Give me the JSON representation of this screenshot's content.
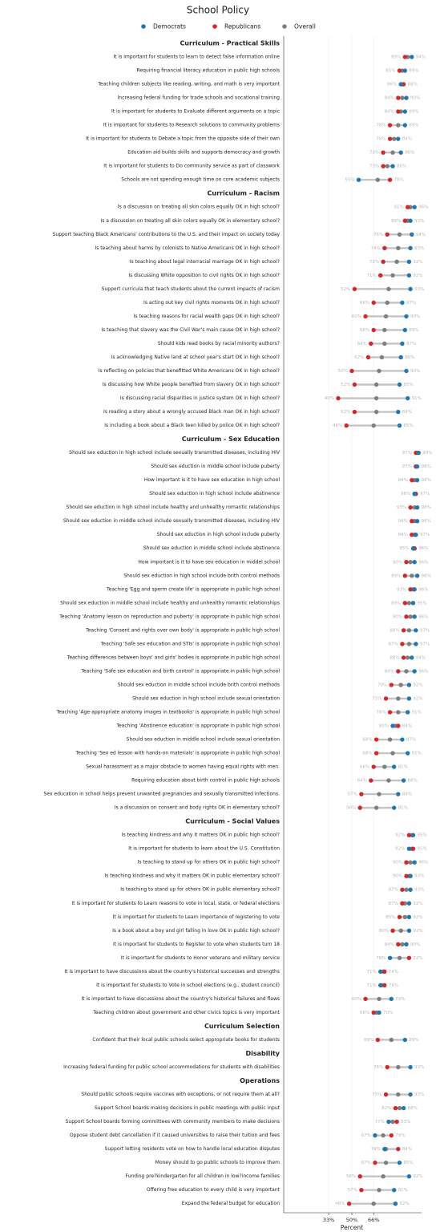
{
  "chart_data": {
    "type": "dot",
    "title": "School Policy",
    "xlabel": "Percent",
    "xlim": [
      0,
      100
    ],
    "xticks": [
      {
        "value": 33,
        "label": "33%"
      },
      {
        "value": 50,
        "label": "50%"
      },
      {
        "value": 66,
        "label": "66%"
      }
    ],
    "grid": true,
    "series": [
      {
        "name": "Democrats",
        "color": "#1f77b4"
      },
      {
        "name": "Republicans",
        "color": "#d62728"
      },
      {
        "name": "Overall",
        "color": "#7f7f7f"
      }
    ],
    "sections": [
      {
        "title": "Curriculum - Practical Skills",
        "categories": [
          "It is important for students to learn to detect false information online",
          "Requiring financial literacy education in public high schools",
          "Teaching children subjects like reading, writing, and math is very important",
          "Increasing federal funding for trade schools and vocational training",
          "It is important for students to Evaluate different arguments on a topic",
          "It is important for students to Research solutions to community problems",
          "It is important for students to Debate a topic from the opposite side of their own",
          "Education aid builds skills and supports democracy and growth",
          "It is important for students to Do community service as part of classwork",
          "Schools are not spending enough time on core academic subjects"
        ],
        "series": [
          {
            "values": [
              94,
              89,
              86,
              90,
              89,
              89,
              84,
              86,
              80,
              55
            ],
            "value_labels": [
              "94%",
              "89%",
              "86%",
              "90%",
              "89%",
              "89%",
              "84%",
              "86%",
              "80%",
              "55%"
            ]
          },
          {
            "values": [
              89,
              85,
              88,
              84,
              84,
              78,
              78,
              73,
              73,
              78
            ],
            "value_labels": [
              "89%",
              "85%",
              "88%",
              "84%",
              "84%",
              "78%",
              "78%",
              "73%",
              "73%",
              "78%"
            ]
          },
          {
            "values": [
              91,
              87,
              87,
              87,
              86,
              84,
              81,
              80,
              76,
              69
            ]
          }
        ]
      },
      {
        "title": "Curriculum - Racism",
        "categories": [
          "Is a discussion on treating all skin colors equally OK in high school?",
          "Is a discussion on treating all skin colors equally OK in elementary school?",
          "Support teaching Black Americans' contributions to the U.S. and their impact on society today",
          "Is teaching about harms by colonists to Native Americans OK in high school?",
          "Is teaching about legal interracial marriage OK in high school?",
          "Is discussing White opposition to civil rights OK in high school?",
          "Support curricula that teach students about the current impacts of racism",
          "Is acting out key civil rights moments OK in high school?",
          "Is teaching reasons for racial wealth gaps OK in high school?",
          "Is teaching that slavery was the Civil War's main cause OK in high school?",
          "Should kids read books by racial minority authors?",
          "Is acknowledging Native land at school year's start OK in high school?",
          "Is reflecting on policies that benefitted White Americans OK in high school?",
          "Is discussing how White people benefited from slavery OK in high school?",
          "Is discussing racial disparities in justice system OK in high school?",
          "Is reading a story about a wrongly accused Black man OK in high school?",
          "Is including a book about a Black teen killed by police OK in high school?"
        ],
        "series": [
          {
            "values": [
              96,
              93,
              94,
              93,
              92,
              92,
              93,
              87,
              90,
              89,
              87,
              86,
              90,
              85,
              91,
              84,
              85
            ],
            "value_labels": [
              "96%",
              "93%",
              "94%",
              "93%",
              "92%",
              "92%",
              "93%",
              "87%",
              "90%",
              "89%",
              "87%",
              "86%",
              "90%",
              "85%",
              "91%",
              "84%",
              "85%"
            ]
          },
          {
            "values": [
              91,
              89,
              76,
              74,
              73,
              71,
              52,
              66,
              60,
              66,
              64,
              62,
              50,
              52,
              40,
              52,
              46
            ],
            "value_labels": [
              "91%",
              "89%",
              "76%",
              "74%",
              "73%",
              "71%",
              "52%",
              "66%",
              "60%",
              "66%",
              "64%",
              "62%",
              "50%",
              "52%",
              "40%",
              "52%",
              "46%"
            ]
          },
          {
            "values": [
              93,
              91,
              85,
              84,
              83,
              80,
              77,
              76,
              75,
              74,
              74,
              72,
              70,
              68,
              68,
              68,
              66
            ]
          }
        ]
      },
      {
        "title": "Curriculum - Sex Education",
        "categories": [
          "Should sex eduction in high school include sexually transmitted diseases, including HIV",
          "Should sex eduction in middle school include puberty",
          "How important is it to have sex education in high school",
          "Should sex eduction in high school include abstinence",
          "Should sex eduction in high school include healthy and unhealthy romantic relationships",
          "Should sex eduction in middle school include sexually transmitted diseases, including HIV",
          "Should sex eduction in high school include puberty",
          "Should sex eduction in middle school include abstinence",
          "How important is it to have sex education in middel school",
          "Should sex eduction in high school include brith control methods",
          "Teaching 'Egg and sperm create life' is appropriate in public high school",
          "Should sex eduction in middle school include healthy and unhealthy romantic relationships",
          "Teaching 'Anatomy lesson on reproduction and puberty' is appropriate in public high school",
          "Teaching 'Consent and rights over own body' is appropriate in public high school",
          "Teaching 'Safe sex education and STIs' is appropriate in public high school",
          "Teaching differences between boys' and girls' bodies is appropriate in public high school",
          "Teaching 'Safe sex education and birth control' is appropriate in public high school",
          "Should sex eduction in middle school include brith control methods",
          "Should sex eduction in high school include sexual orientation",
          "Teaching 'Age-appropriate anatomy images in textbooks' is appropriate in public high school",
          "Teaching 'Abstinence education' is appropriate in public high school",
          "Should sex eduction in middle school include sexual orientation",
          "Teaching 'Sex ed lesson with hands-on materials' is appropriate in public high school",
          "Sexual harassment as a major obstacle to women having equal rights with men.",
          "Requiring education about birth control in public high schools",
          "Sex education in school helps prevent unwanted pregnancies and sexually transmitted infections.",
          "Is a discussion on consent and body rights OK in elementary school?"
        ],
        "series": [
          {
            "values": [
              99,
              98,
              98,
              96,
              98,
              98,
              97,
              95,
              96,
              98,
              96,
              95,
              96,
              97,
              97,
              94,
              96,
              92,
              92,
              91,
              80,
              87,
              91,
              81,
              88,
              84,
              81
            ],
            "value_labels": [
              "99%",
              "98%",
              "98%",
              "96%",
              "98%",
              "98%",
              "97%",
              "95%",
              "96%",
              "98%",
              "96%",
              "95%",
              "96%",
              "97%",
              "97%",
              "94%",
              "96%",
              "92%",
              "92%",
              "91%",
              "80%",
              "87%",
              "91%",
              "81%",
              "88%",
              "84%",
              "81%"
            ]
          },
          {
            "values": [
              97,
              97,
              94,
              97,
              93,
              94,
              94,
              96,
              90,
              89,
              93,
              89,
              90,
              88,
              87,
              88,
              84,
              79,
              75,
              78,
              84,
              68,
              68,
              66,
              64,
              57,
              56
            ],
            "value_labels": [
              "97%",
              "97%",
              "94%",
              "97%",
              "93%",
              "94%",
              "94%",
              "96%",
              "90%",
              "89%",
              "93%",
              "89%",
              "90%",
              "88%",
              "87%",
              "88%",
              "84%",
              "79%",
              "75%",
              "78%",
              "84%",
              "68%",
              "68%",
              "66%",
              "64%",
              "57%",
              "56%"
            ]
          },
          {
            "values": [
              98,
              97,
              96,
              96,
              96,
              96,
              96,
              96,
              93,
              94,
              95,
              92,
              93,
              92,
              92,
              91,
              90,
              86,
              84,
              84,
              82,
              78,
              80,
              74,
              77,
              70,
              68
            ]
          }
        ]
      },
      {
        "title": "Curriculum - Social Values",
        "categories": [
          "Is teaching kindness and why it matters OK in public high school?",
          "It is important for students to learn about the U.S. Constitution",
          "Is teaching to stand up for others OK in public high school?",
          "Is teaching kindness and why it matters OK in public elementary school?",
          "Is teaching to stand up for others OK in public elementary school?",
          "It is important for students to Learn reasons to vote in local, state, or federal elections",
          "It is important for students to Learn importance of registering to vote",
          "Is a book about a boy and girl falling in love OK in public high school?",
          "It is important for students to Register to vote when students turn 18",
          "It is important for students to Honor veterans and military service",
          "It is important to have discussions about the country's historical successes and strengths",
          "It is important for students to Vote in school elections (e.g., student council)",
          "It is important to have discussions about the country's historical failures and flaws",
          "Teaching children about government and other civics topics is very important"
        ],
        "series": [
          {
            "values": [
              95,
              92,
              96,
              93,
              93,
              92,
              92,
              92,
              90,
              78,
              71,
              71,
              79,
              70
            ],
            "value_labels": [
              "95%",
              "92%",
              "96%",
              "93%",
              "93%",
              "92%",
              "92%",
              "92%",
              "90%",
              "78%",
              "71%",
              "71%",
              "79%",
              "70%"
            ]
          },
          {
            "values": [
              92,
              95,
              90,
              90,
              87,
              87,
              85,
              80,
              84,
              92,
              74,
              74,
              60,
              66
            ],
            "value_labels": [
              "92%",
              "95%",
              "90%",
              "90%",
              "87%",
              "87%",
              "85%",
              "80%",
              "84%",
              "92%",
              "74%",
              "74%",
              "60%",
              "66%"
            ]
          },
          {
            "values": [
              94,
              94,
              93,
              92,
              90,
              89,
              89,
              86,
              87,
              85,
              73,
              72,
              70,
              68
            ]
          }
        ]
      },
      {
        "title": "Curriculum Selection",
        "categories": [
          "Confident that their local public schools select appropriate books for students"
        ],
        "series": [
          {
            "values": [
              89
            ],
            "value_labels": [
              "89%"
            ]
          },
          {
            "values": [
              69
            ],
            "value_labels": [
              "69%"
            ]
          },
          {
            "values": [
              79
            ]
          }
        ]
      },
      {
        "title": "Disability",
        "categories": [
          "Increasing federal funding for public school accommodations for students with disabilities"
        ],
        "series": [
          {
            "values": [
              93
            ],
            "value_labels": [
              "93%"
            ]
          },
          {
            "values": [
              76
            ],
            "value_labels": [
              "76%"
            ]
          },
          {
            "values": [
              84
            ]
          }
        ]
      },
      {
        "title": "Operations",
        "categories": [
          "Should public schools require vaccines with exceptions, or not require them at all?",
          "Support School boards making decisions in public meetings with public input",
          "Support School boards forming committees with community members to make decisions",
          "Oppose student debt cancellation if it caused universities to raise their tuition and fees",
          "Support letting residents vote on how to handle local education disputes",
          "Money should to go public schools to improve them",
          "Funding pre?kindergarten for all children in low?income families",
          "Offering free education to every child is very important",
          "Expand the federal budget for education"
        ],
        "series": [
          {
            "values": [
              93,
              88,
              77,
              67,
              74,
              85,
              92,
              81,
              82
            ],
            "value_labels": [
              "93%",
              "88%",
              "77%",
              "67%",
              "74%",
              "85%",
              "92%",
              "81%",
              "82%"
            ]
          },
          {
            "values": [
              75,
              82,
              83,
              79,
              84,
              67,
              56,
              57,
              48
            ],
            "value_labels": [
              "75%",
              "82%",
              "83%",
              "79%",
              "84%",
              "67%",
              "56%",
              "57%",
              "48%"
            ]
          },
          {
            "values": [
              84,
              85,
              80,
              73,
              75,
              75,
              73,
              70,
              66
            ]
          }
        ]
      }
    ]
  }
}
